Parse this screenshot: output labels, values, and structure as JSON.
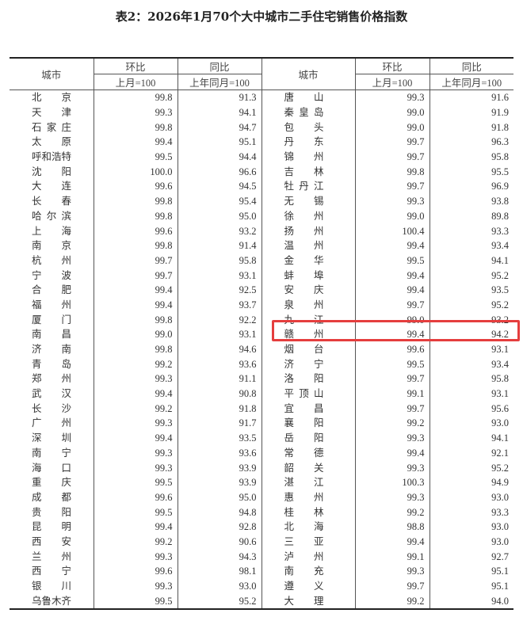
{
  "title": "表2：2026年1月70个大中城市二手住宅销售价格指数",
  "headers": {
    "city": "城市",
    "mom": "环比",
    "yoy": "同比",
    "mom_base": "上月=100",
    "yoy_base": "上年同月=100"
  },
  "highlight_color": "#e53e3e",
  "highlighted_city": "赣州",
  "left": [
    [
      "北京",
      "99.8",
      "91.3"
    ],
    [
      "天津",
      "99.3",
      "94.1"
    ],
    [
      "石家庄",
      "99.8",
      "94.7"
    ],
    [
      "太原",
      "99.4",
      "95.1"
    ],
    [
      "呼和浩特",
      "99.5",
      "94.4"
    ],
    [
      "沈阳",
      "100.0",
      "96.6"
    ],
    [
      "大连",
      "99.6",
      "94.5"
    ],
    [
      "长春",
      "99.8",
      "95.4"
    ],
    [
      "哈尔滨",
      "99.8",
      "95.0"
    ],
    [
      "上海",
      "99.6",
      "93.2"
    ],
    [
      "南京",
      "99.8",
      "91.4"
    ],
    [
      "杭州",
      "99.7",
      "95.8"
    ],
    [
      "宁波",
      "99.7",
      "93.1"
    ],
    [
      "合肥",
      "99.4",
      "92.5"
    ],
    [
      "福州",
      "99.4",
      "93.7"
    ],
    [
      "厦门",
      "99.8",
      "92.2"
    ],
    [
      "南昌",
      "99.0",
      "93.1"
    ],
    [
      "济南",
      "99.8",
      "94.6"
    ],
    [
      "青岛",
      "99.2",
      "93.6"
    ],
    [
      "郑州",
      "99.3",
      "91.1"
    ],
    [
      "武汉",
      "99.4",
      "90.8"
    ],
    [
      "长沙",
      "99.2",
      "91.8"
    ],
    [
      "广州",
      "99.3",
      "91.7"
    ],
    [
      "深圳",
      "99.4",
      "93.5"
    ],
    [
      "南宁",
      "99.3",
      "93.6"
    ],
    [
      "海口",
      "99.3",
      "93.9"
    ],
    [
      "重庆",
      "99.5",
      "93.9"
    ],
    [
      "成都",
      "99.6",
      "95.0"
    ],
    [
      "贵阳",
      "99.5",
      "94.8"
    ],
    [
      "昆明",
      "99.4",
      "92.8"
    ],
    [
      "西安",
      "99.2",
      "90.6"
    ],
    [
      "兰州",
      "99.3",
      "94.3"
    ],
    [
      "西宁",
      "99.6",
      "98.1"
    ],
    [
      "银川",
      "99.3",
      "93.0"
    ],
    [
      "乌鲁木齐",
      "99.5",
      "95.2"
    ]
  ],
  "right": [
    [
      "唐山",
      "99.3",
      "91.6"
    ],
    [
      "秦皇岛",
      "99.0",
      "91.9"
    ],
    [
      "包头",
      "99.0",
      "91.8"
    ],
    [
      "丹东",
      "99.7",
      "96.3"
    ],
    [
      "锦州",
      "99.7",
      "95.8"
    ],
    [
      "吉林",
      "99.8",
      "95.5"
    ],
    [
      "牡丹江",
      "99.7",
      "96.9"
    ],
    [
      "无锡",
      "99.3",
      "93.8"
    ],
    [
      "徐州",
      "99.0",
      "89.8"
    ],
    [
      "扬州",
      "100.4",
      "93.3"
    ],
    [
      "温州",
      "99.4",
      "93.4"
    ],
    [
      "金华",
      "99.5",
      "94.1"
    ],
    [
      "蚌埠",
      "99.4",
      "95.2"
    ],
    [
      "安庆",
      "99.4",
      "93.5"
    ],
    [
      "泉州",
      "99.7",
      "95.2"
    ],
    [
      "九江",
      "99.0",
      "93.2"
    ],
    [
      "赣州",
      "99.4",
      "94.2"
    ],
    [
      "烟台",
      "99.6",
      "93.1"
    ],
    [
      "济宁",
      "99.5",
      "93.4"
    ],
    [
      "洛阳",
      "99.7",
      "95.8"
    ],
    [
      "平顶山",
      "99.1",
      "93.1"
    ],
    [
      "宜昌",
      "99.7",
      "95.6"
    ],
    [
      "襄阳",
      "99.2",
      "93.0"
    ],
    [
      "岳阳",
      "99.3",
      "94.1"
    ],
    [
      "常德",
      "99.4",
      "92.1"
    ],
    [
      "韶关",
      "99.3",
      "95.2"
    ],
    [
      "湛江",
      "100.3",
      "94.9"
    ],
    [
      "惠州",
      "99.3",
      "93.0"
    ],
    [
      "桂林",
      "99.2",
      "93.3"
    ],
    [
      "北海",
      "98.8",
      "93.0"
    ],
    [
      "三亚",
      "99.4",
      "93.0"
    ],
    [
      "泸州",
      "99.1",
      "92.7"
    ],
    [
      "南充",
      "99.3",
      "95.1"
    ],
    [
      "遵义",
      "99.7",
      "95.1"
    ],
    [
      "大理",
      "99.2",
      "94.0"
    ]
  ]
}
